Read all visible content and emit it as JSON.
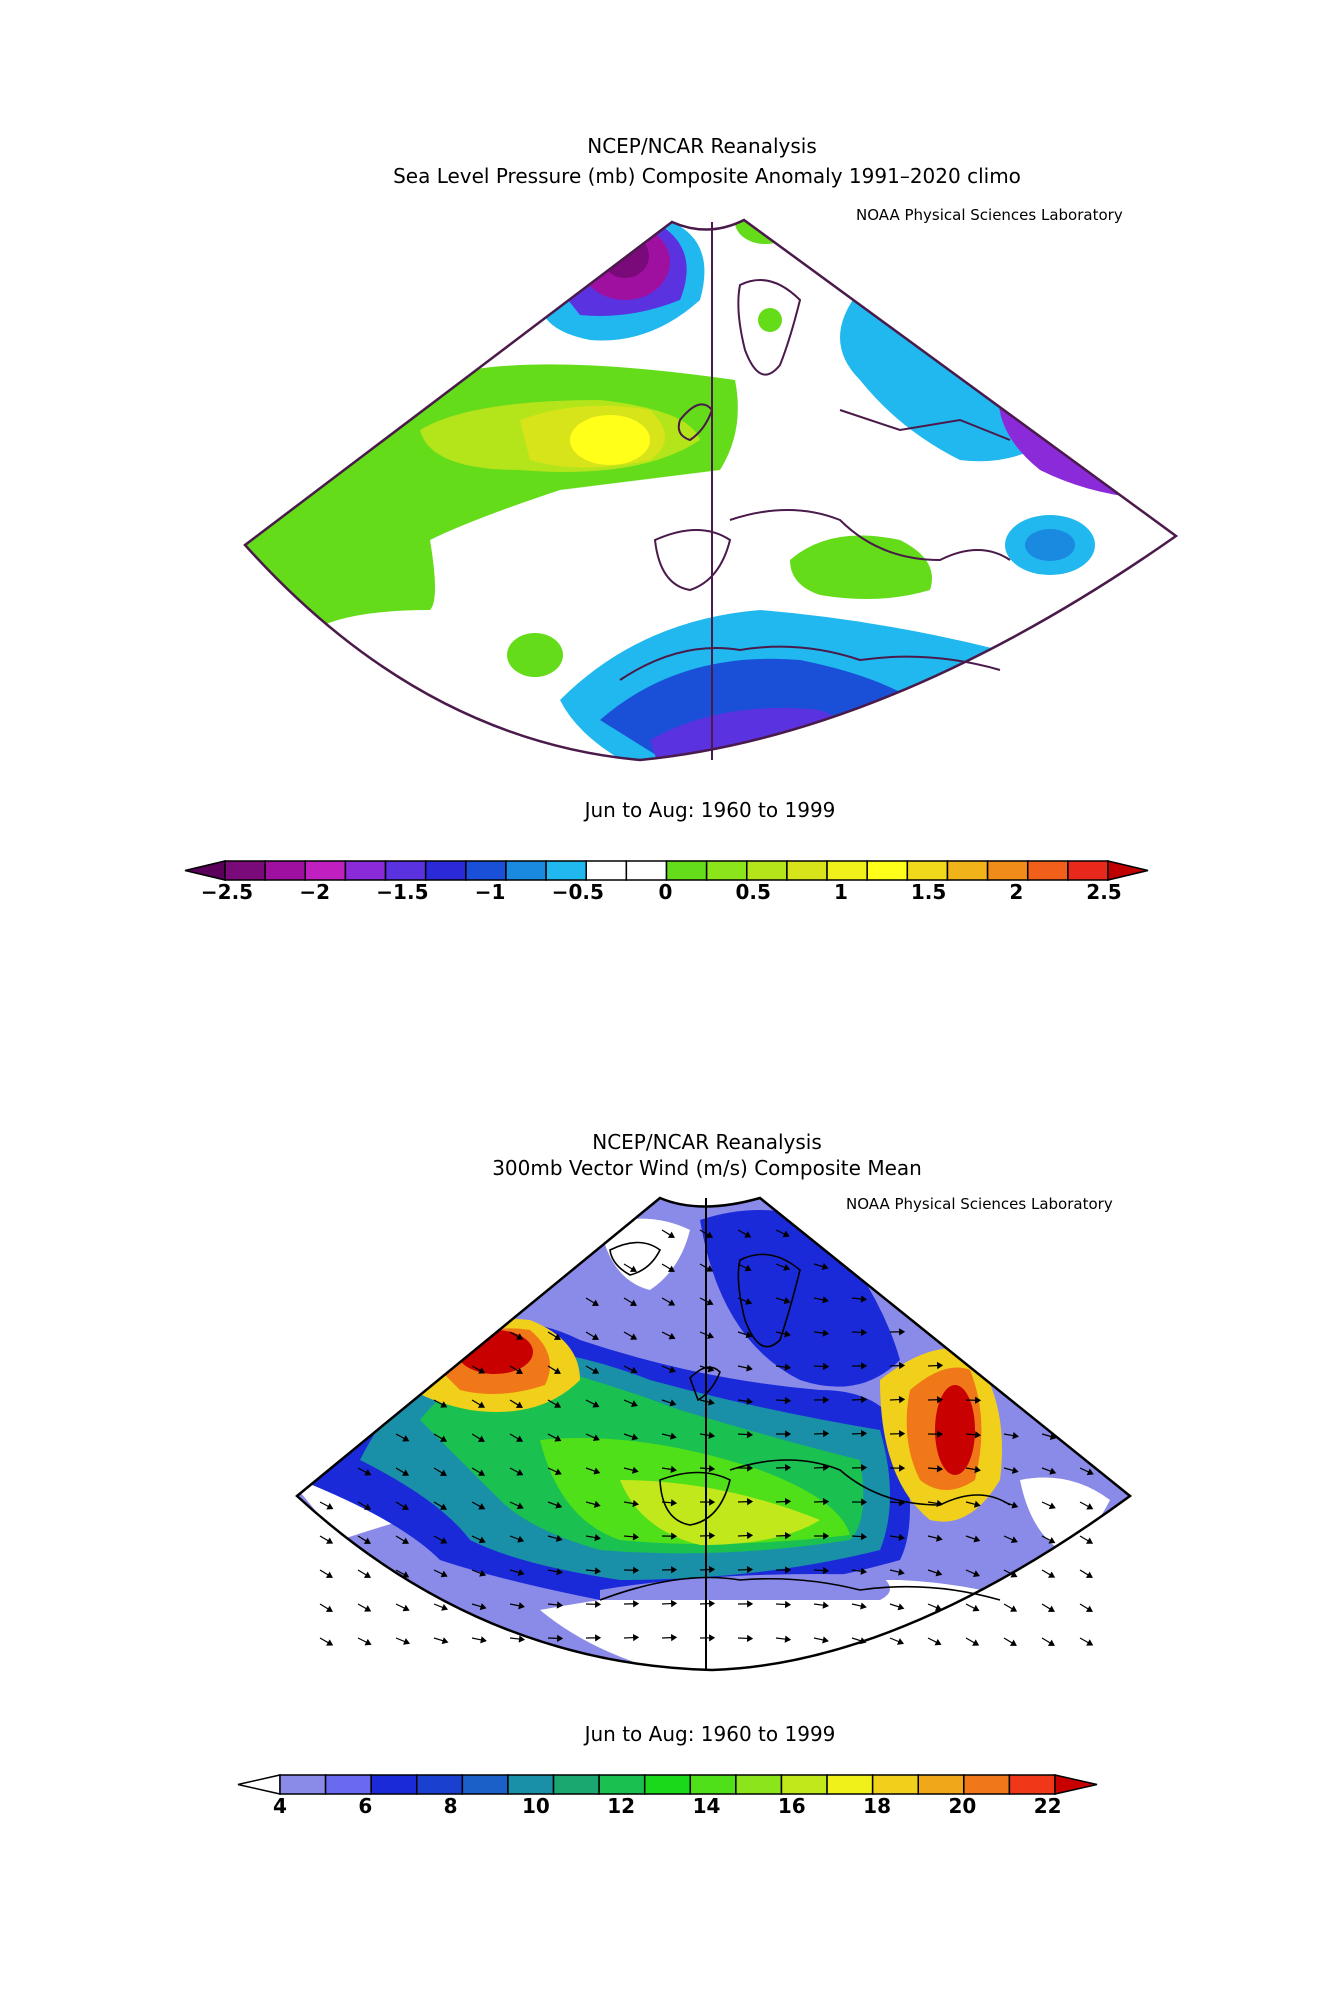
{
  "top": {
    "title1": "NCEP/NCAR Reanalysis",
    "title2": "Sea Level Pressure (mb) Composite Anomaly 1991–2020 climo",
    "credit": "NOAA Physical Sciences Laboratory",
    "season": "Jun to Aug: 1960 to 1999",
    "colorbar": {
      "colors": [
        "#5a005a",
        "#7a0a7a",
        "#a010a0",
        "#c020c0",
        "#8a2ad8",
        "#5a32e0",
        "#2a2ad8",
        "#1a50d8",
        "#1a8ae0",
        "#20b8ee",
        "#ffffff",
        "#ffffff",
        "#64dc1a",
        "#8ce41a",
        "#b4e41a",
        "#d8e41a",
        "#f0f01a",
        "#ffff1a",
        "#f0d81a",
        "#f0b41a",
        "#f08c1a",
        "#f0601a",
        "#e8281a",
        "#c00000"
      ],
      "ticks": [
        "−2.5",
        "−2",
        "−1.5",
        "−1",
        "−0.5",
        "0",
        "0.5",
        "1",
        "1.5",
        "2",
        "2.5"
      ]
    }
  },
  "bottom": {
    "title1": "NCEP/NCAR Reanalysis",
    "title2": "300mb Vector Wind (m/s) Composite Mean",
    "credit": "NOAA Physical Sciences Laboratory",
    "season": "Jun to Aug: 1960 to 1999",
    "colorbar": {
      "colors": [
        "#ffffff",
        "#8a8ae8",
        "#6a6af0",
        "#1a2ad8",
        "#1a40d0",
        "#1a60c8",
        "#1a90a8",
        "#1aa870",
        "#1ac050",
        "#1ad81a",
        "#50e01a",
        "#8ce41a",
        "#c0e81a",
        "#f0f01a",
        "#f0d01a",
        "#f0a81a",
        "#f07818",
        "#f03818",
        "#c80000"
      ],
      "ticks": [
        "4",
        "6",
        "8",
        "10",
        "12",
        "14",
        "16",
        "18",
        "20",
        "22"
      ]
    }
  }
}
